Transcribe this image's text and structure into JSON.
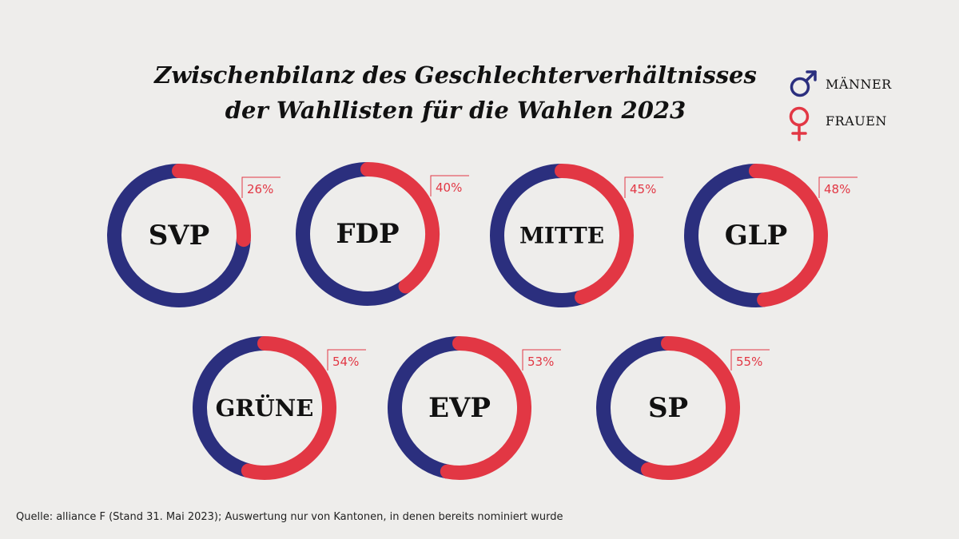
{
  "title": {
    "line1": "Zwischenbilanz des Geschlechterverhältnisses",
    "line2": "der Wahllisten für die Wahlen 2023"
  },
  "legend": {
    "men": {
      "label": "MÄNNER",
      "icon": "male-symbol-icon",
      "color": "#2b2f7e"
    },
    "women": {
      "label": "FRAUEN",
      "icon": "female-symbol-icon",
      "color": "#e23744"
    }
  },
  "chart_data": {
    "type": "pie",
    "variant": "donut",
    "series_colors": {
      "women": "#e23744",
      "men": "#2b2f7e"
    },
    "value_description": "share of women on the lists",
    "parties": [
      {
        "name": "SVP",
        "women_pct": 26,
        "label": "26%"
      },
      {
        "name": "FDP",
        "women_pct": 40,
        "label": "40%"
      },
      {
        "name": "MITTE",
        "women_pct": 45,
        "label": "45%"
      },
      {
        "name": "GLP",
        "women_pct": 48,
        "label": "48%"
      },
      {
        "name": "GRÜNE",
        "women_pct": 54,
        "label": "54%"
      },
      {
        "name": "EVP",
        "women_pct": 53,
        "label": "53%"
      },
      {
        "name": "SP",
        "women_pct": 55,
        "label": "55%"
      }
    ]
  },
  "source": "Quelle: alliance F (Stand 31. Mai 2023); Auswertung nur von Kantonen, in denen bereits nominiert wurde"
}
